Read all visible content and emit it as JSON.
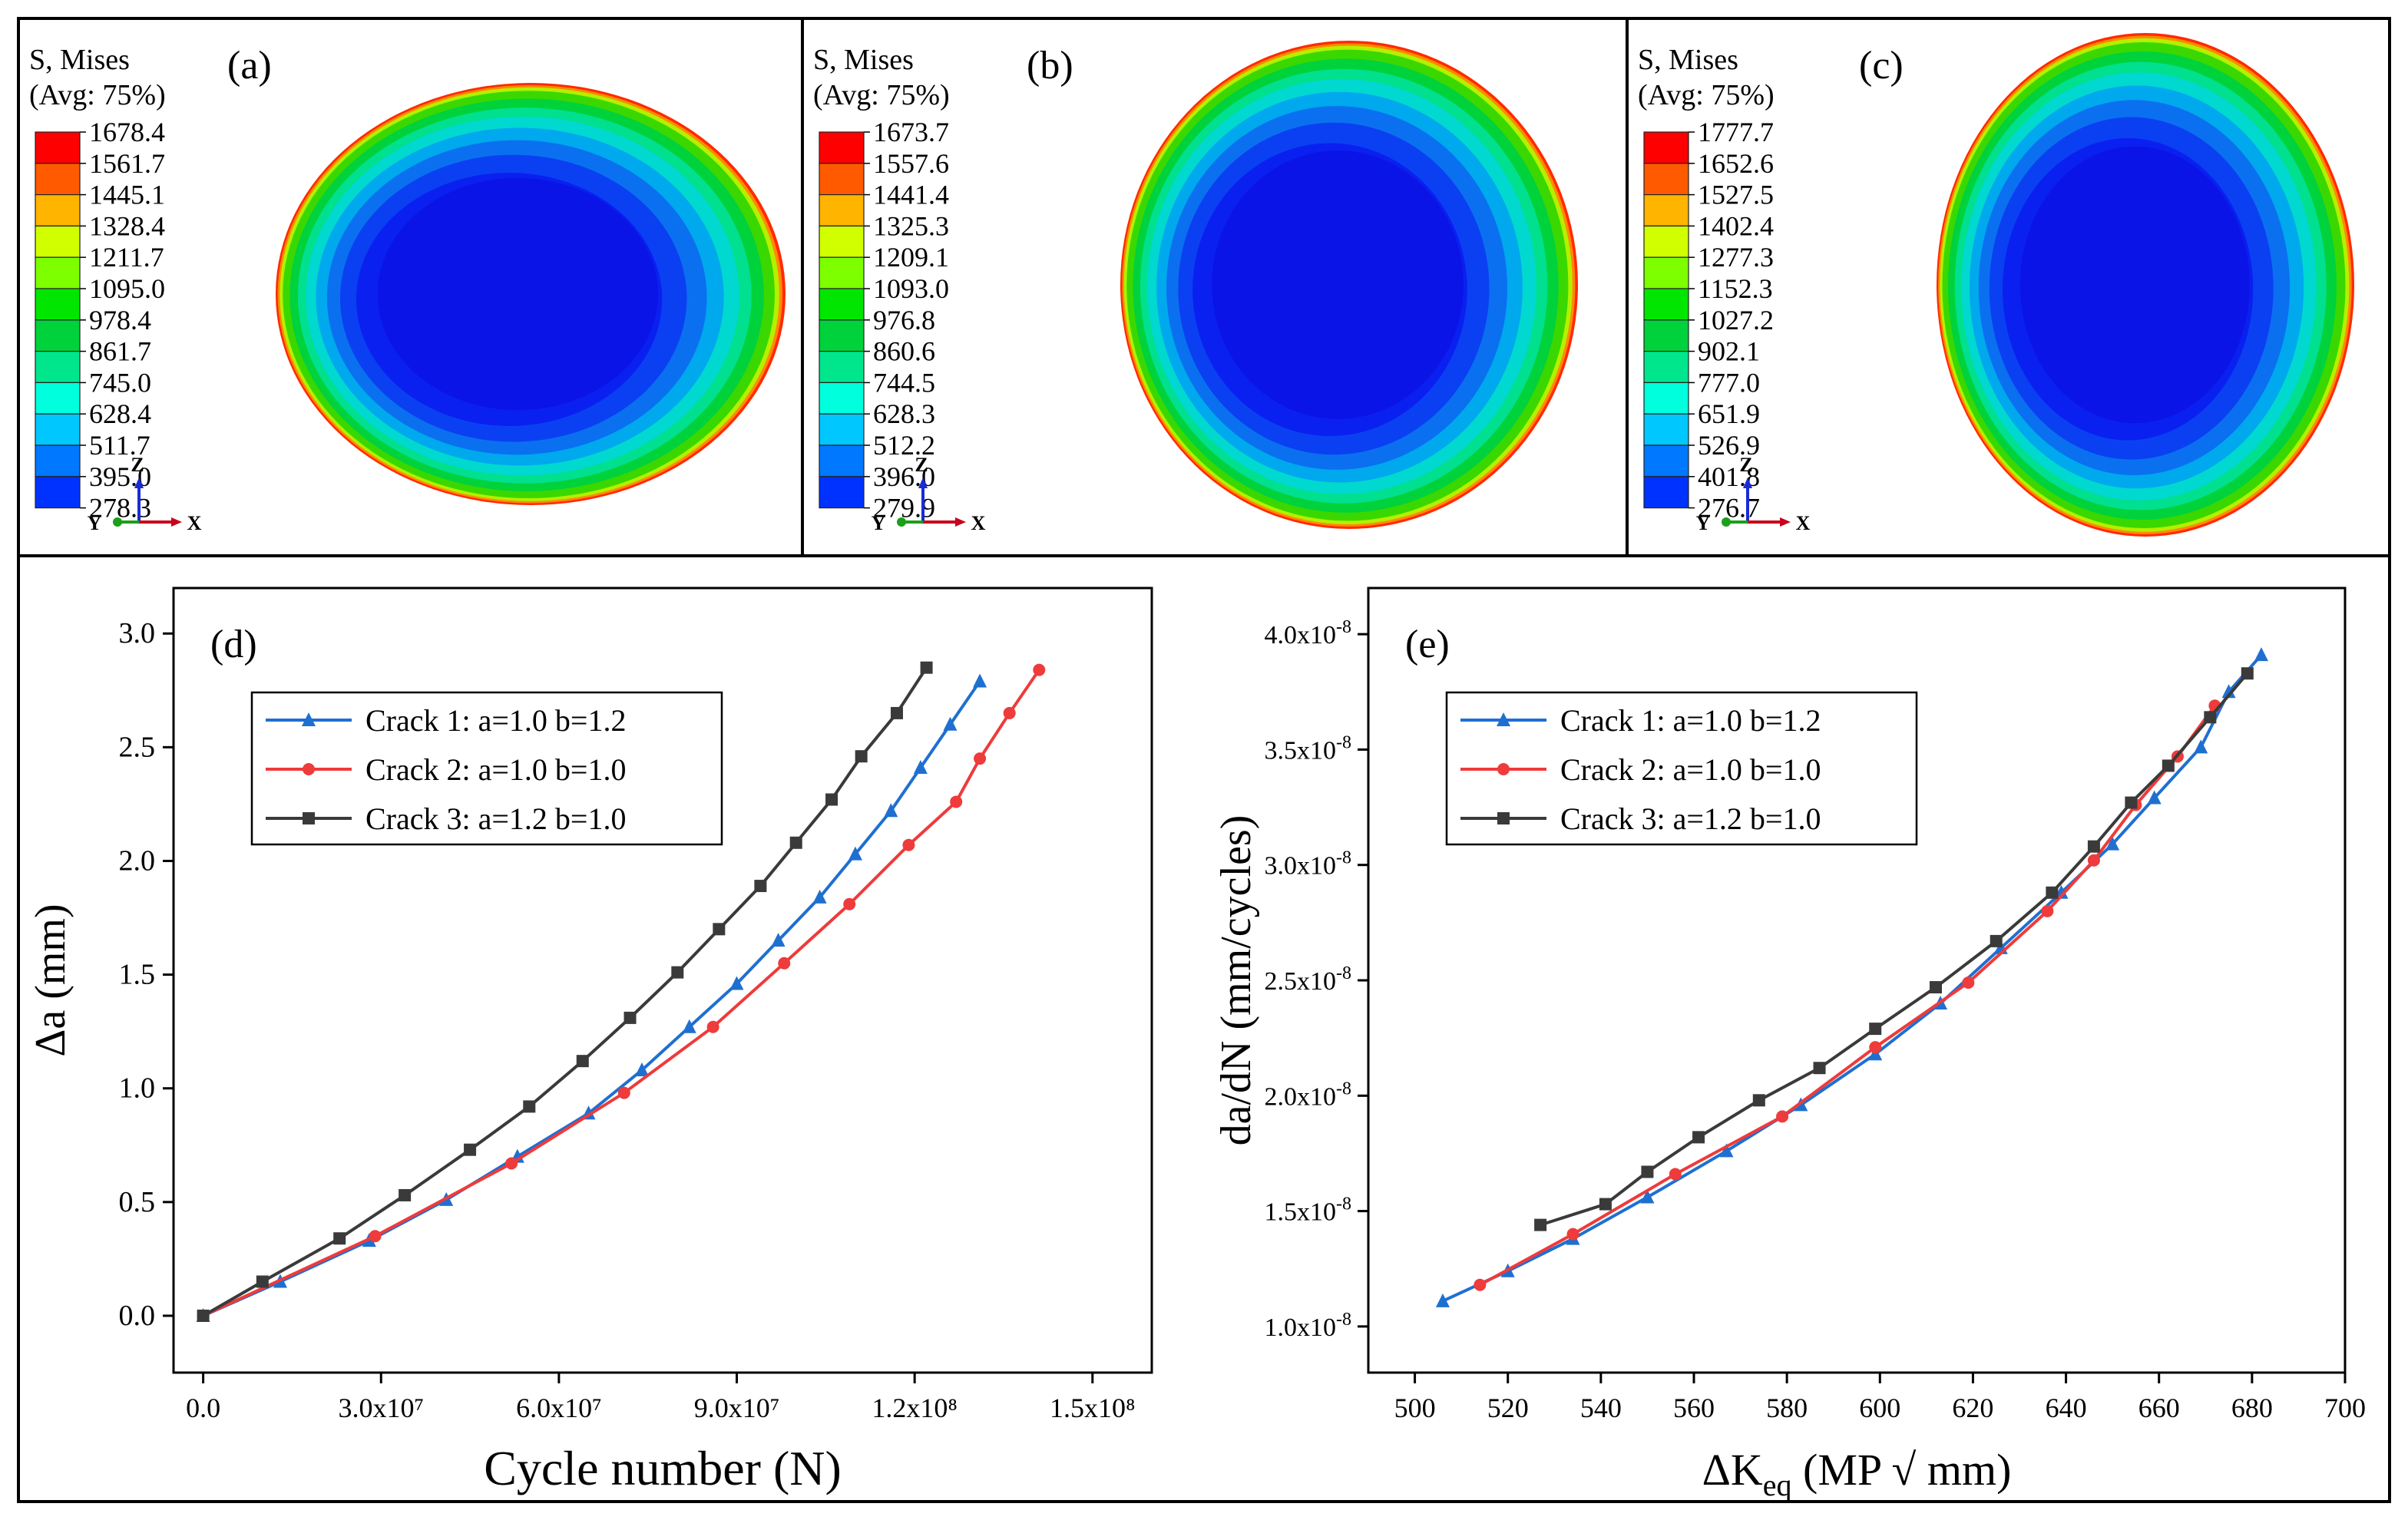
{
  "fem_panels": [
    {
      "panel_label": "(a)",
      "legend_title_1": "S, Mises",
      "legend_title_2": "(Avg: 75%)",
      "legend_values": [
        "1678.4",
        "1561.7",
        "1445.1",
        "1328.4",
        "1211.7",
        "1095.0",
        "978.4",
        "861.7",
        "745.0",
        "628.4",
        "511.7",
        "395.0",
        "278.3"
      ],
      "ellipse_aspect": 1.04
    },
    {
      "panel_label": "(b)",
      "legend_title_1": "S, Mises",
      "legend_title_2": "(Avg: 75%)",
      "legend_values": [
        "1673.7",
        "1557.6",
        "1441.4",
        "1325.3",
        "1209.1",
        "1093.0",
        "976.8",
        "860.6",
        "744.5",
        "628.3",
        "512.2",
        "396.0",
        "279.9"
      ],
      "ellipse_aspect": 0.93
    },
    {
      "panel_label": "(c)",
      "legend_title_1": "S, Mises",
      "legend_title_2": "(Avg: 75%)",
      "legend_values": [
        "1777.7",
        "1652.6",
        "1527.5",
        "1402.4",
        "1277.3",
        "1152.3",
        "1027.2",
        "902.1",
        "777.0",
        "651.9",
        "526.9",
        "401.8",
        "276.7"
      ],
      "ellipse_aspect": 0.83
    }
  ],
  "legend_colors": [
    "#ff0000",
    "#ff5a00",
    "#ffb400",
    "#d2ff00",
    "#7dff00",
    "#00e600",
    "#00d23c",
    "#00e68c",
    "#00ffdc",
    "#00c8ff",
    "#0078ff",
    "#0032ff",
    "#0000ff"
  ],
  "triad": {
    "z": "Z",
    "y": "Y",
    "x": "X"
  },
  "chart_data": [
    {
      "type": "line",
      "panel_label": "(d)",
      "xlabel": "Cycle number (N)",
      "ylabel": "Δa (mm)",
      "xlim": [
        -5000000,
        160000000
      ],
      "ylim": [
        -0.25,
        3.2
      ],
      "x_ticks": [
        {
          "value": 0,
          "label": "0.0"
        },
        {
          "value": 30000000,
          "label": "3.0x10⁷"
        },
        {
          "value": 60000000,
          "label": "6.0x10⁷"
        },
        {
          "value": 90000000,
          "label": "9.0x10⁷"
        },
        {
          "value": 120000000,
          "label": "1.2x10⁸"
        },
        {
          "value": 150000000,
          "label": "1.5x10⁸"
        }
      ],
      "y_ticks": [
        {
          "value": 0,
          "label": "0.0"
        },
        {
          "value": 0.5,
          "label": "0.5"
        },
        {
          "value": 1.0,
          "label": "1.0"
        },
        {
          "value": 1.5,
          "label": "1.5"
        },
        {
          "value": 2.0,
          "label": "2.0"
        },
        {
          "value": 2.5,
          "label": "2.5"
        },
        {
          "value": 3.0,
          "label": "3.0"
        }
      ],
      "series": [
        {
          "name": "Crack 1: a=1.0 b=1.2",
          "color": "#1f6fd1",
          "marker": "triangle",
          "x": [
            0,
            13000000,
            28000000,
            41000000,
            53000000,
            65000000,
            74000000,
            82000000,
            90000000,
            97000000,
            104000000,
            110000000,
            116000000,
            121000000,
            126000000,
            131000000
          ],
          "y": [
            0,
            0.15,
            0.33,
            0.51,
            0.7,
            0.89,
            1.08,
            1.27,
            1.46,
            1.65,
            1.84,
            2.03,
            2.22,
            2.41,
            2.6,
            2.79
          ]
        },
        {
          "name": "Crack 2: a=1.0 b=1.0",
          "color": "#ee3b3b",
          "marker": "circle",
          "x": [
            0,
            29000000,
            52000000,
            71000000,
            86000000,
            98000000,
            109000000,
            119000000,
            127000000,
            131000000,
            136000000,
            141000000
          ],
          "y": [
            0,
            0.35,
            0.67,
            0.98,
            1.27,
            1.55,
            1.81,
            2.07,
            2.26,
            2.45,
            2.65,
            2.84
          ]
        },
        {
          "name": "Crack 3: a=1.2 b=1.0",
          "color": "#3a3a3a",
          "marker": "square",
          "x": [
            0,
            10000000,
            23000000,
            34000000,
            45000000,
            55000000,
            64000000,
            72000000,
            80000000,
            87000000,
            94000000,
            100000000,
            106000000,
            111000000,
            117000000,
            122000000
          ],
          "y": [
            0,
            0.15,
            0.34,
            0.53,
            0.73,
            0.92,
            1.12,
            1.31,
            1.51,
            1.7,
            1.89,
            2.08,
            2.27,
            2.46,
            2.65,
            2.85
          ]
        }
      ],
      "legend_position": "top-left"
    },
    {
      "type": "line",
      "panel_label": "(e)",
      "xlabel_main": "ΔK",
      "xlabel_sub": "eq",
      "xlabel_tail": " (MP √ mm)",
      "ylabel": "da/dN (mm/cycles)",
      "xlim": [
        490,
        700
      ],
      "ylim": [
        8e-09,
        4.2e-08
      ],
      "x_ticks": [
        {
          "value": 500,
          "label": "500"
        },
        {
          "value": 520,
          "label": "520"
        },
        {
          "value": 540,
          "label": "540"
        },
        {
          "value": 560,
          "label": "560"
        },
        {
          "value": 580,
          "label": "580"
        },
        {
          "value": 600,
          "label": "600"
        },
        {
          "value": 620,
          "label": "620"
        },
        {
          "value": 640,
          "label": "640"
        },
        {
          "value": 660,
          "label": "660"
        },
        {
          "value": 680,
          "label": "680"
        },
        {
          "value": 700,
          "label": "700"
        }
      ],
      "y_ticks": [
        {
          "value": 1e-08,
          "mant": "1.0x10",
          "exp": "-8"
        },
        {
          "value": 1.5e-08,
          "mant": "1.5x10",
          "exp": "-8"
        },
        {
          "value": 2e-08,
          "mant": "2.0x10",
          "exp": "-8"
        },
        {
          "value": 2.5e-08,
          "mant": "2.5x10",
          "exp": "-8"
        },
        {
          "value": 3e-08,
          "mant": "3.0x10",
          "exp": "-8"
        },
        {
          "value": 3.5e-08,
          "mant": "3.5x10",
          "exp": "-8"
        },
        {
          "value": 4e-08,
          "mant": "4.0x10",
          "exp": "-8"
        }
      ],
      "series": [
        {
          "name": "Crack 1: a=1.0 b=1.2",
          "color": "#1f6fd1",
          "marker": "triangle",
          "x": [
            506,
            520,
            534,
            550,
            567,
            583,
            599,
            613,
            626,
            639,
            650,
            659,
            669,
            675,
            682
          ],
          "y": [
            1.11e-08,
            1.24e-08,
            1.38e-08,
            1.56e-08,
            1.76e-08,
            1.96e-08,
            2.18e-08,
            2.4e-08,
            2.64e-08,
            2.88e-08,
            3.09e-08,
            3.29e-08,
            3.51e-08,
            3.75e-08,
            3.91e-08
          ]
        },
        {
          "name": "Crack 2: a=1.0 b=1.0",
          "color": "#ee3b3b",
          "marker": "circle",
          "x": [
            514,
            534,
            556,
            579,
            599,
            619,
            636,
            646,
            655,
            664,
            672
          ],
          "y": [
            1.18e-08,
            1.4e-08,
            1.66e-08,
            1.91e-08,
            2.21e-08,
            2.49e-08,
            2.8e-08,
            3.02e-08,
            3.26e-08,
            3.47e-08,
            3.69e-08
          ]
        },
        {
          "name": "Crack 3: a=1.2 b=1.0",
          "color": "#3a3a3a",
          "marker": "square",
          "x": [
            527,
            541,
            550,
            561,
            574,
            587,
            599,
            612,
            625,
            637,
            646,
            654,
            662,
            671,
            679
          ],
          "y": [
            1.44e-08,
            1.53e-08,
            1.67e-08,
            1.82e-08,
            1.98e-08,
            2.12e-08,
            2.29e-08,
            2.47e-08,
            2.67e-08,
            2.88e-08,
            3.08e-08,
            3.27e-08,
            3.43e-08,
            3.64e-08,
            3.83e-08
          ]
        }
      ],
      "legend_position": "top-left"
    }
  ]
}
